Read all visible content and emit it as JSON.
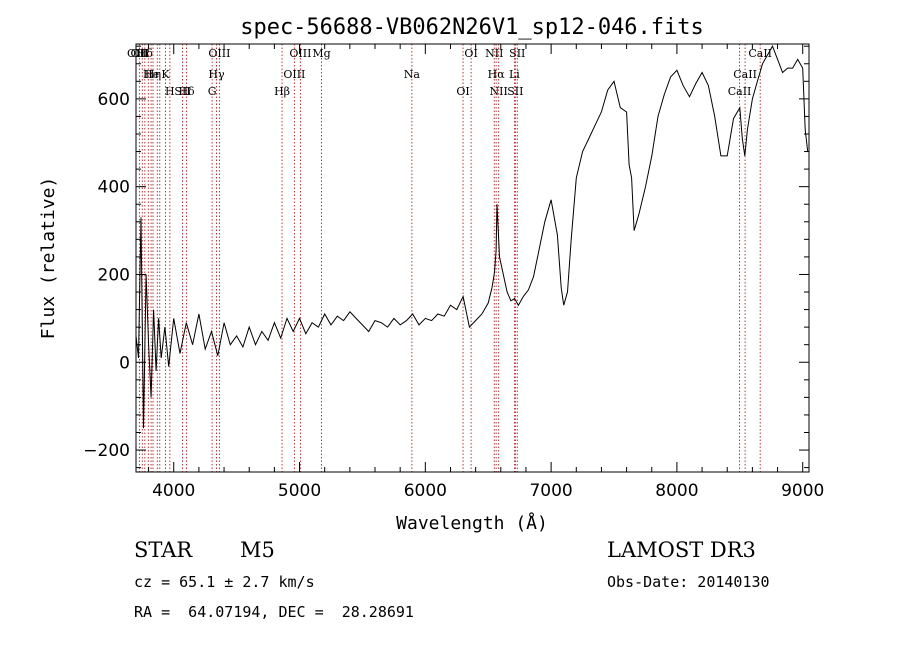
{
  "chart_data": {
    "type": "line",
    "title": "spec-56688-VB062N26V1_sp12-046.fits",
    "xlabel": "Wavelength (Å)",
    "ylabel": "Flux (relative)",
    "xlim": [
      3700,
      9050
    ],
    "ylim": [
      -250,
      725
    ],
    "x_ticks": [
      {
        "value": 4000,
        "label": "4000"
      },
      {
        "value": 5000,
        "label": "5000"
      },
      {
        "value": 6000,
        "label": "6000"
      },
      {
        "value": 7000,
        "label": "7000"
      },
      {
        "value": 8000,
        "label": "8000"
      },
      {
        "value": 9000,
        "label": "9000"
      }
    ],
    "y_ticks": [
      {
        "value": -200,
        "label": "−200"
      },
      {
        "value": 0,
        "label": "0"
      },
      {
        "value": 200,
        "label": "200"
      },
      {
        "value": 400,
        "label": "400"
      },
      {
        "value": 600,
        "label": "600"
      }
    ],
    "series": [
      {
        "name": "spectrum",
        "x": [
          3700,
          3720,
          3740,
          3760,
          3780,
          3800,
          3820,
          3840,
          3860,
          3880,
          3900,
          3930,
          3960,
          4000,
          4050,
          4100,
          4150,
          4200,
          4250,
          4300,
          4350,
          4400,
          4450,
          4500,
          4550,
          4600,
          4650,
          4700,
          4750,
          4800,
          4850,
          4900,
          4950,
          5000,
          5050,
          5100,
          5150,
          5200,
          5250,
          5300,
          5350,
          5400,
          5450,
          5500,
          5550,
          5600,
          5650,
          5700,
          5750,
          5800,
          5850,
          5900,
          5950,
          6000,
          6050,
          6100,
          6150,
          6200,
          6250,
          6300,
          6350,
          6400,
          6450,
          6500,
          6530,
          6550,
          6563,
          6570,
          6590,
          6620,
          6650,
          6680,
          6710,
          6740,
          6780,
          6820,
          6860,
          6900,
          6950,
          7000,
          7050,
          7080,
          7100,
          7130,
          7160,
          7200,
          7250,
          7300,
          7350,
          7400,
          7450,
          7500,
          7550,
          7600,
          7620,
          7640,
          7660,
          7680,
          7700,
          7750,
          7800,
          7850,
          7900,
          7950,
          8000,
          8050,
          8100,
          8150,
          8200,
          8250,
          8300,
          8350,
          8400,
          8450,
          8500,
          8520,
          8540,
          8560,
          8600,
          8640,
          8680,
          8720,
          8760,
          8800,
          8840,
          8880,
          8920,
          8960,
          9000,
          9020,
          9040
        ],
        "y": [
          60,
          10,
          330,
          -150,
          200,
          40,
          -80,
          120,
          -20,
          100,
          10,
          80,
          -10,
          100,
          20,
          90,
          40,
          110,
          30,
          70,
          15,
          90,
          40,
          60,
          35,
          80,
          40,
          70,
          50,
          90,
          55,
          100,
          70,
          100,
          65,
          90,
          80,
          110,
          85,
          105,
          95,
          115,
          100,
          85,
          70,
          95,
          90,
          80,
          100,
          85,
          95,
          110,
          85,
          100,
          95,
          110,
          105,
          130,
          120,
          150,
          80,
          95,
          110,
          135,
          170,
          205,
          255,
          360,
          240,
          200,
          160,
          140,
          145,
          130,
          150,
          165,
          195,
          250,
          320,
          370,
          290,
          170,
          130,
          160,
          280,
          420,
          480,
          510,
          540,
          570,
          620,
          640,
          580,
          570,
          450,
          420,
          300,
          320,
          340,
          400,
          470,
          560,
          610,
          650,
          665,
          630,
          605,
          635,
          660,
          630,
          560,
          470,
          470,
          555,
          580,
          510,
          470,
          530,
          600,
          640,
          680,
          700,
          720,
          690,
          660,
          670,
          670,
          690,
          670,
          530,
          480
        ]
      }
    ],
    "lines": [
      {
        "label": "Hδ",
        "x": 3770
      },
      {
        "label": "K",
        "x": 3934
      },
      {
        "label": "Hδ",
        "x": 4102
      },
      {
        "label": "OII",
        "x": 3727
      },
      {
        "label": "He",
        "x": 3820
      },
      {
        "label": "SII",
        "x": 4070
      },
      {
        "label": "OIII",
        "x": 3700
      },
      {
        "label": "Hη",
        "x": 3835
      },
      {
        "label": "H",
        "x": 3969
      },
      {
        "label": "OIII",
        "x": 4363
      },
      {
        "label": "Hγ",
        "x": 4340
      },
      {
        "label": "G",
        "x": 4305
      },
      {
        "label": "OIII",
        "x": 5007
      },
      {
        "label": "OIII",
        "x": 4959
      },
      {
        "label": "Hβ",
        "x": 4861
      },
      {
        "label": "Mg",
        "x": 5175
      },
      {
        "label": "Na",
        "x": 5893
      },
      {
        "label": "OI",
        "x": 6300
      },
      {
        "label": "OI",
        "x": 6364
      },
      {
        "label": "Hα",
        "x": 6563
      },
      {
        "label": "SII",
        "x": 6716
      },
      {
        "label": "NII",
        "x": 6548
      },
      {
        "label": "Li",
        "x": 6708
      },
      {
        "label": "NII",
        "x": 6583
      },
      {
        "label": "SII",
        "x": 6731
      },
      {
        "label": "CaII",
        "x": 8542
      },
      {
        "label": "CaII",
        "x": 8498
      },
      {
        "label": "CaII",
        "x": 8662
      }
    ],
    "line_positions": [
      3727,
      3750,
      3770,
      3798,
      3820,
      3835,
      3869,
      3889,
      3934,
      3969,
      4070,
      4102,
      4305,
      4340,
      4363,
      4861,
      4959,
      5007,
      5175,
      5893,
      6300,
      6364,
      6548,
      6563,
      6583,
      6708,
      6716,
      6731,
      8498,
      8542,
      8662
    ]
  },
  "info": {
    "object_class": "STAR",
    "subclass": "M5",
    "survey": "LAMOST DR3",
    "redshift": "cz = 65.1 ± 2.7 km/s",
    "obs_date": "Obs-Date: 20140130",
    "coords": "RA =  64.07194, DEC =  28.28691"
  }
}
